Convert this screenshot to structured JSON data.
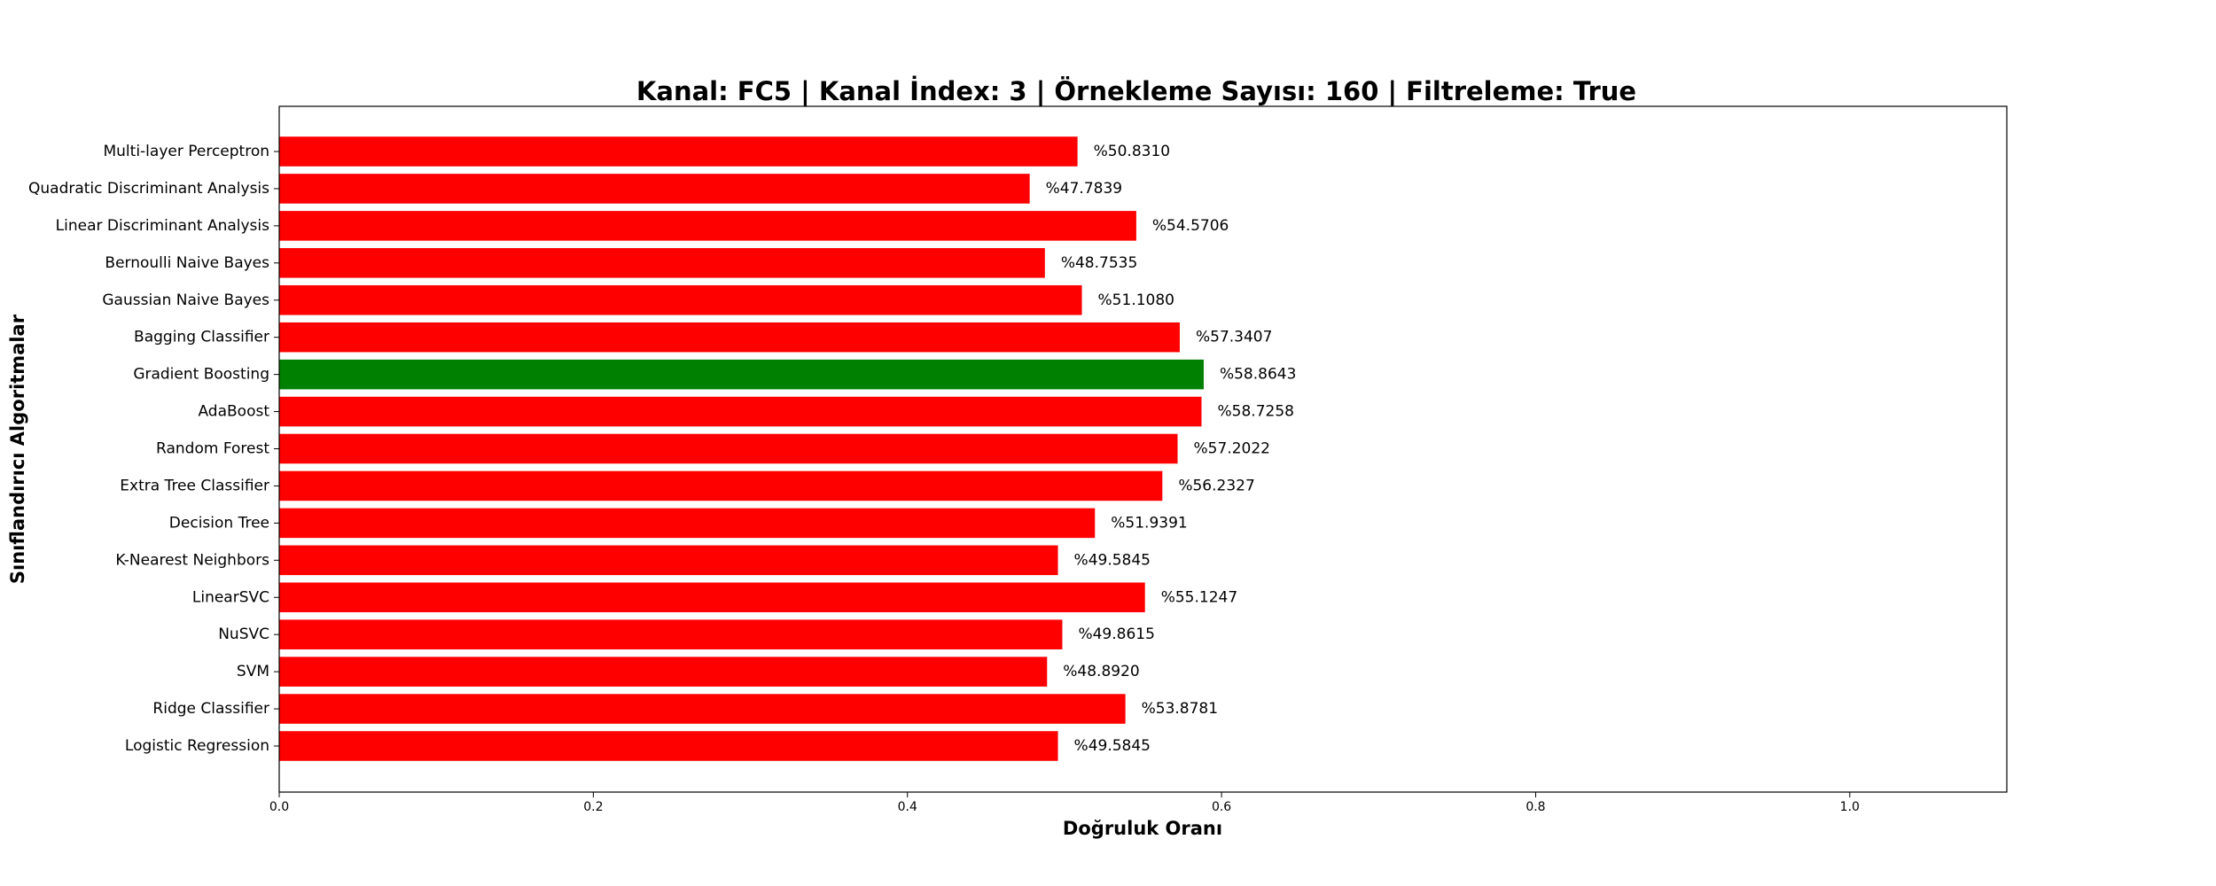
{
  "chart_data": {
    "type": "bar",
    "orientation": "horizontal",
    "title": "Kanal: FC5 | Kanal İndex: 3 | Örnekleme Sayısı: 160 | Filtreleme: True",
    "xlabel": "Doğruluk Oranı",
    "ylabel": "Sınıflandırıcı Algoritmalar",
    "xlim": [
      0,
      1.1
    ],
    "xticks": [
      0.0,
      0.2,
      0.4,
      0.6,
      0.8,
      1.0
    ],
    "xtick_labels": [
      "0.0",
      "0.2",
      "0.4",
      "0.6",
      "0.8",
      "1.0"
    ],
    "grid": false,
    "colors": {
      "default": "#ff0000",
      "highlight": "#008000"
    },
    "highlight_category": "Gradient Boosting",
    "categories": [
      "Logistic Regression",
      "Ridge Classifier",
      "SVM",
      "NuSVC",
      "LinearSVC",
      "K-Nearest Neighbors",
      "Decision Tree",
      "Extra Tree Classifier",
      "Random Forest",
      "AdaBoost",
      "Gradient Boosting",
      "Bagging Classifier",
      "Gaussian Naive Bayes",
      "Bernoulli Naive Bayes",
      "Linear Discriminant Analysis",
      "Quadratic Discriminant Analysis",
      "Multi-layer Perceptron"
    ],
    "values": [
      0.495845,
      0.538781,
      0.48892,
      0.498615,
      0.551247,
      0.495845,
      0.519391,
      0.562327,
      0.572022,
      0.587258,
      0.588643,
      0.573407,
      0.51108,
      0.487535,
      0.545706,
      0.477839,
      0.50831
    ],
    "data_labels": [
      "%49.5845",
      "%53.8781",
      "%48.8920",
      "%49.8615",
      "%55.1247",
      "%49.5845",
      "%51.9391",
      "%56.2327",
      "%57.2022",
      "%58.7258",
      "%58.8643",
      "%57.3407",
      "%51.1080",
      "%48.7535",
      "%54.5706",
      "%47.7839",
      "%50.8310"
    ]
  }
}
